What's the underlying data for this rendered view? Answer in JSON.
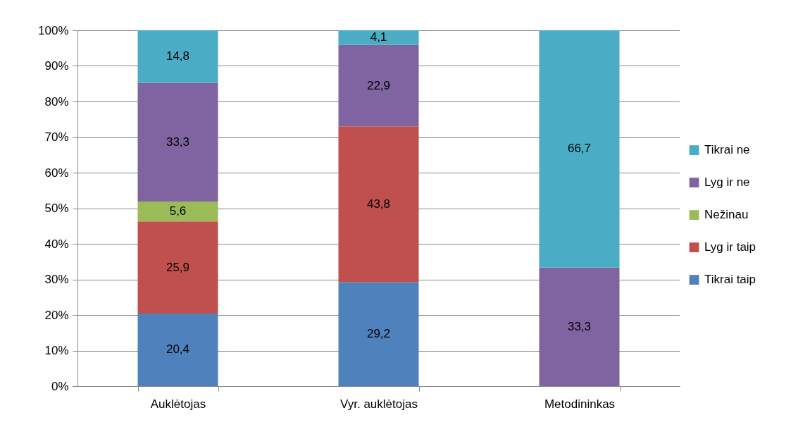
{
  "chart_data": {
    "type": "bar",
    "stacked": true,
    "categories": [
      "Auklėtojas",
      "Vyr. auklėtojas",
      "Metodininkas"
    ],
    "series": [
      {
        "name": "Tikrai taip",
        "color": "#4f81bd",
        "values": [
          20.4,
          29.2,
          null
        ],
        "value_labels": [
          "20,4",
          "29,2",
          null
        ]
      },
      {
        "name": "Lyg ir taip",
        "color": "#c0504d",
        "values": [
          25.9,
          43.8,
          null
        ],
        "value_labels": [
          "25,9",
          "43,8",
          null
        ]
      },
      {
        "name": "Nežinau",
        "color": "#9bbb59",
        "values": [
          5.6,
          null,
          null
        ],
        "value_labels": [
          "5,6",
          null,
          null
        ]
      },
      {
        "name": "Lyg ir ne",
        "color": "#8064a2",
        "values": [
          33.3,
          22.9,
          33.3
        ],
        "value_labels": [
          "33,3",
          "22,9",
          "33,3"
        ]
      },
      {
        "name": "Tikrai ne",
        "color": "#4bacc6",
        "values": [
          14.8,
          4.1,
          66.7
        ],
        "value_labels": [
          "14,8",
          "4,1",
          "66,7"
        ]
      }
    ],
    "ylim": [
      0,
      100
    ],
    "yticks": [
      {
        "value": 0,
        "label": "0%"
      },
      {
        "value": 10,
        "label": "10%"
      },
      {
        "value": 20,
        "label": "20%"
      },
      {
        "value": 30,
        "label": "30%"
      },
      {
        "value": 40,
        "label": "40%"
      },
      {
        "value": 50,
        "label": "50%"
      },
      {
        "value": 60,
        "label": "60%"
      },
      {
        "value": 70,
        "label": "70%"
      },
      {
        "value": 80,
        "label": "80%"
      },
      {
        "value": 90,
        "label": "90%"
      },
      {
        "value": 100,
        "label": "100%"
      }
    ],
    "grid": "y",
    "legend": "right"
  }
}
